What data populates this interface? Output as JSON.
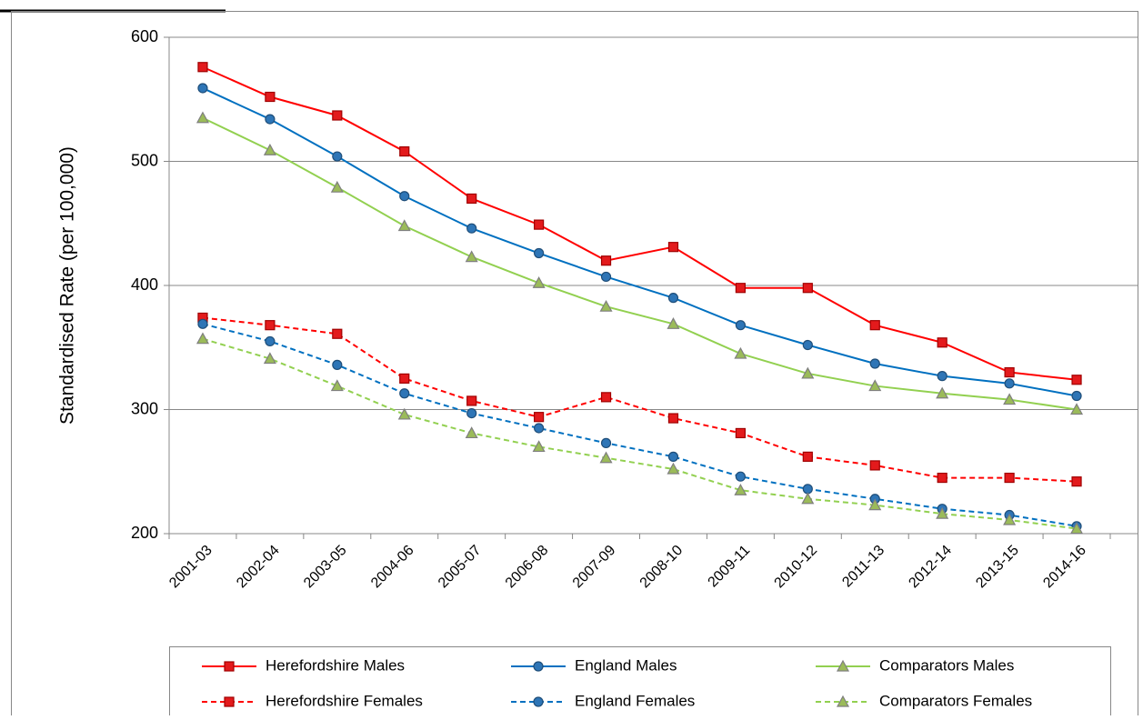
{
  "chart_data": {
    "type": "line",
    "y_label": "Standardised Rate (per 100,000)",
    "categories": [
      "2001-03",
      "2002-04",
      "2003-05",
      "2004-06",
      "2005-07",
      "2006-08",
      "2007-09",
      "2008-10",
      "2009-11",
      "2010-12",
      "2011-13",
      "2012-14",
      "2013-15",
      "2014-16"
    ],
    "ylim": [
      200,
      600
    ],
    "yticks": [
      200,
      300,
      400,
      500,
      600
    ],
    "grid": true,
    "legend": "bottom",
    "series": [
      {
        "name": "Herefordshire Males",
        "color": "#ff0000",
        "marker": "square",
        "dash": false,
        "values": [
          576,
          552,
          537,
          508,
          470,
          449,
          420,
          431,
          398,
          398,
          368,
          354,
          330,
          324
        ]
      },
      {
        "name": "England Males",
        "color": "#0070c0",
        "marker": "circle",
        "dash": false,
        "values": [
          559,
          534,
          504,
          472,
          446,
          426,
          407,
          390,
          368,
          352,
          337,
          327,
          321,
          311
        ]
      },
      {
        "name": "Comparators Males",
        "color": "#92d050",
        "marker": "triangle",
        "dash": false,
        "values": [
          535,
          509,
          479,
          448,
          423,
          402,
          383,
          369,
          345,
          329,
          319,
          313,
          308,
          300
        ]
      },
      {
        "name": "Herefordshire Females",
        "color": "#ff0000",
        "marker": "square",
        "dash": true,
        "values": [
          374,
          368,
          361,
          325,
          307,
          294,
          310,
          293,
          281,
          262,
          255,
          245,
          245,
          242
        ]
      },
      {
        "name": "England Females",
        "color": "#0070c0",
        "marker": "circle",
        "dash": true,
        "values": [
          369,
          355,
          336,
          313,
          297,
          285,
          273,
          262,
          246,
          236,
          228,
          220,
          215,
          206
        ]
      },
      {
        "name": "Comparators Females",
        "color": "#92d050",
        "marker": "triangle",
        "dash": true,
        "values": [
          357,
          341,
          319,
          296,
          281,
          270,
          261,
          252,
          235,
          228,
          223,
          216,
          211,
          204
        ]
      }
    ]
  }
}
